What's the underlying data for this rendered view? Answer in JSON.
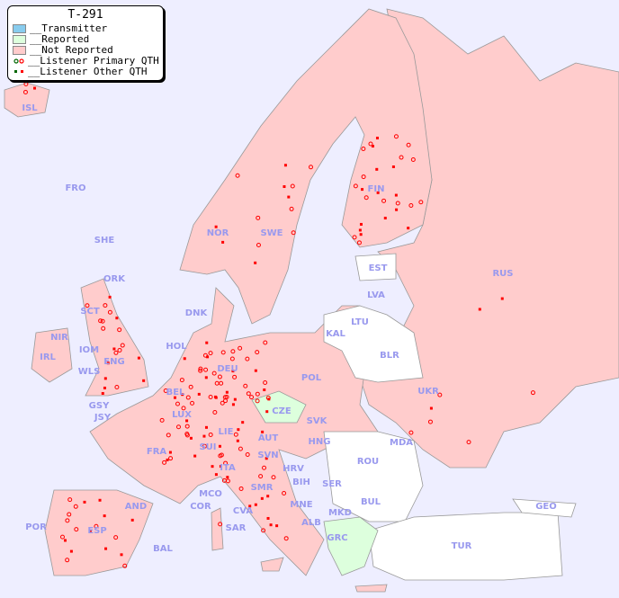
{
  "legend": {
    "title": "T-291",
    "items": [
      {
        "label": "__Transmitter",
        "color": "#88ccee"
      },
      {
        "label": "__Reported",
        "color": "#ddffdd"
      },
      {
        "label": "__Not Reported",
        "color": "#ffcccc"
      },
      {
        "label": "__Listener Primary QTH",
        "marker": "open-circle",
        "colors": [
          "#006600",
          "#ff0000"
        ]
      },
      {
        "label": "__Listener Other QTH",
        "marker": "filled-square",
        "colors": [
          "#006600",
          "#ff0000"
        ]
      }
    ]
  },
  "colors": {
    "sea": "#eeeeff",
    "not_reported": "#ffcccc",
    "reported": "#ddffdd",
    "no_data": "#ffffff",
    "border": "#999999",
    "listener": "#ff0000",
    "label": "#9999ee"
  },
  "countries": [
    "ISL",
    "FRO",
    "SHE",
    "ORK",
    "NOR",
    "SWE",
    "FIN",
    "EST",
    "LVA",
    "LTU",
    "KAL",
    "BLR",
    "RUS",
    "DNK",
    "HOL",
    "BEL",
    "LUX",
    "DEU",
    "POL",
    "CZE",
    "SVK",
    "UKR",
    "MDA",
    "ROU",
    "HNG",
    "AUT",
    "SUI",
    "LIE",
    "SVN",
    "HRV",
    "BIH",
    "SER",
    "MNE",
    "ALB",
    "MKD",
    "BUL",
    "GRC",
    "TUR",
    "GEO",
    "ITA",
    "SMR",
    "CVA",
    "MCO",
    "COR",
    "SAR",
    "FRA",
    "AND",
    "ESP",
    "POR",
    "BAL",
    "GSY",
    "JSY",
    "IRL",
    "NIR",
    "IOM",
    "WLS",
    "ENG",
    "SCT"
  ]
}
